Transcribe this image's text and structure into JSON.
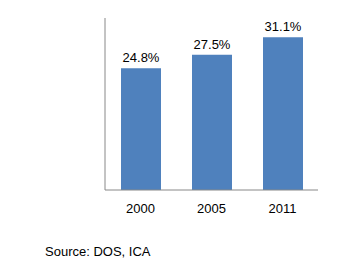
{
  "chart_data": {
    "type": "bar",
    "categories": [
      "2000",
      "2005",
      "2011"
    ],
    "values": [
      24.8,
      27.5,
      31.1
    ],
    "value_labels": [
      "24.8%",
      "27.5%",
      "31.1%"
    ],
    "data_labels": true,
    "color": "#4f81bd",
    "ylim": [
      0,
      35
    ],
    "tick_labels": "x",
    "grid": false,
    "source": "Source: DOS, ICA"
  }
}
